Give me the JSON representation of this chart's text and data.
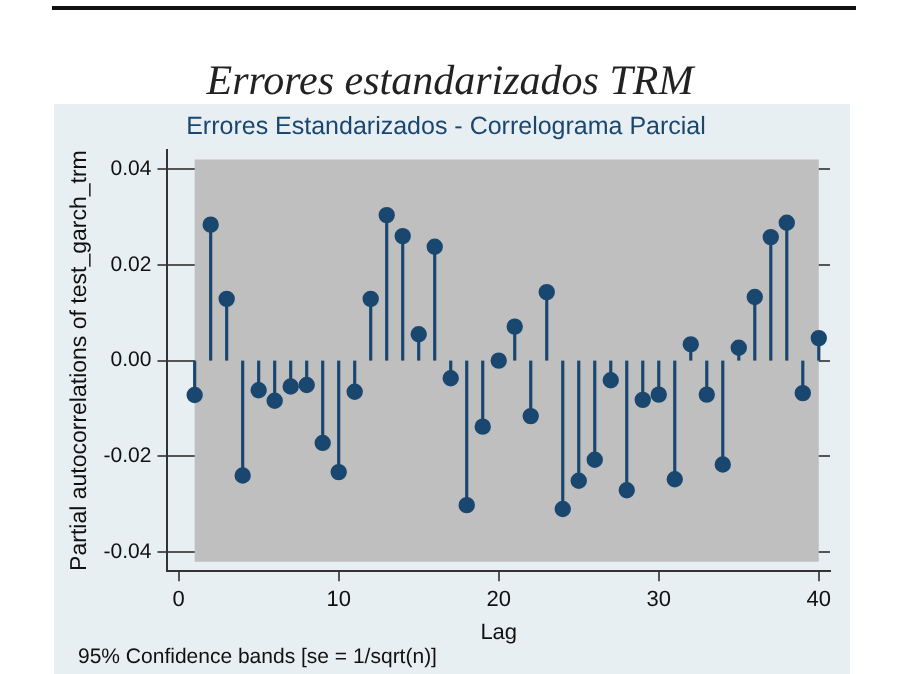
{
  "chart_data": {
    "type": "lollipop",
    "title": "Errores estandarizados TRM",
    "subtitle": "Errores Estandarizados - Correlograma Parcial",
    "xlabel": "Lag",
    "ylabel": "Partial autocorrelations of test_garch_trm",
    "annotations": [
      "95% Confidence bands [se = 1/sqrt(n)]"
    ],
    "x": [
      1,
      2,
      3,
      4,
      5,
      6,
      7,
      8,
      9,
      10,
      11,
      12,
      13,
      14,
      15,
      16,
      17,
      18,
      19,
      20,
      21,
      22,
      23,
      24,
      25,
      26,
      27,
      28,
      29,
      30,
      31,
      32,
      33,
      34,
      35,
      36,
      37,
      38,
      39,
      40
    ],
    "series": [
      {
        "color": "#1a476f",
        "values": [
          -0.0072,
          0.0284,
          0.0129,
          -0.024,
          -0.0062,
          -0.0084,
          -0.0054,
          -0.0051,
          -0.0172,
          -0.0233,
          -0.0065,
          0.0129,
          0.0304,
          0.026,
          0.0055,
          0.0238,
          -0.0037,
          -0.0302,
          -0.0138,
          0,
          0.0071,
          -0.0116,
          0.0143,
          -0.031,
          -0.0251,
          -0.0207,
          -0.0041,
          -0.0271,
          -0.0082,
          -0.0071,
          -0.0248,
          0.0034,
          -0.0071,
          -0.0217,
          0.0027,
          0.0133,
          0.0258,
          0.0288,
          -0.0068,
          0.0047
        ]
      }
    ],
    "bands": [
      {
        "axis": "y",
        "from": -0.042,
        "to": 0.042,
        "color": "#c0bfbf"
      }
    ],
    "xlim": [
      -0.7,
      40.7
    ],
    "xticks": [
      0,
      10,
      20,
      30,
      40
    ],
    "ylim": [
      -0.044,
      0.044
    ],
    "yticks": [
      {
        "value": -0.04,
        "label": "-0.04"
      },
      {
        "value": -0.02,
        "label": "-0.02"
      },
      {
        "value": 0,
        "label": "0.00"
      },
      {
        "value": 0.02,
        "label": "0.02"
      },
      {
        "value": 0.04,
        "label": "0.04"
      }
    ],
    "grid": "y",
    "legend": false,
    "marker": "circle"
  }
}
